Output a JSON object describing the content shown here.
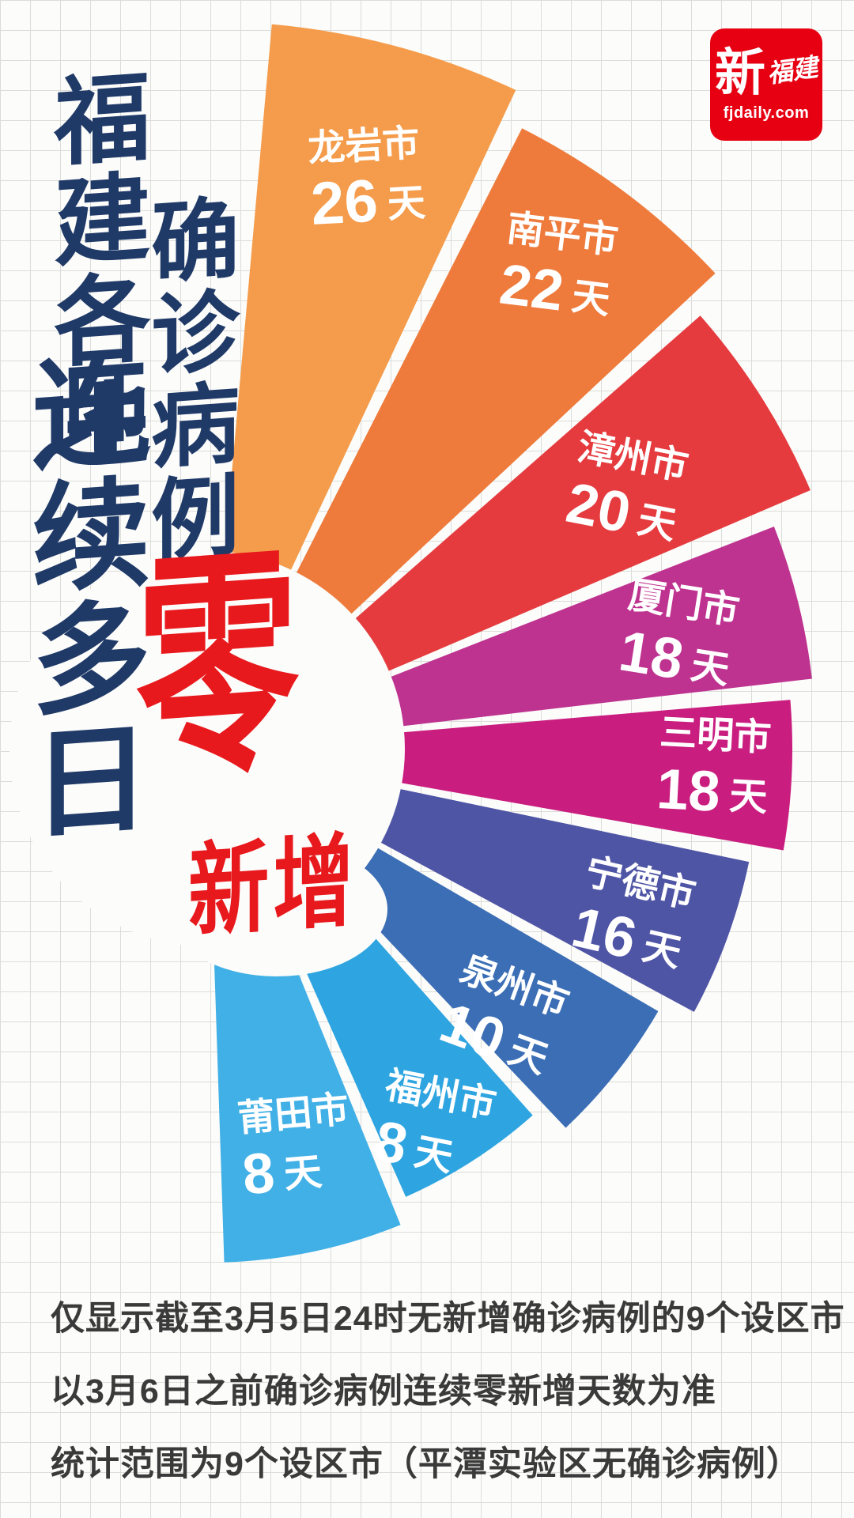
{
  "title": {
    "col1": "福建各地",
    "col2": "确诊病例",
    "col3": "连续多日",
    "zero": "零",
    "xinzeng": "新增"
  },
  "logo": {
    "name_bold": "新",
    "name_script": "福建",
    "domain": "fjdaily.com",
    "bg_color": "#e60012"
  },
  "footer": {
    "line1": "仅显示截至3月5日24时无新增确诊病例的9个设区市",
    "line2": "以3月6日之前确诊病例连续零新增天数为准",
    "line3": "统计范围为9个设区市（平潭实验区无确诊病例）"
  },
  "colors": {
    "title_navy": "#203a68",
    "accent_red": "#e8191d",
    "footer_text": "#3a3a3a",
    "background": "#fcfcfa",
    "grid_line": "#dcdcd9"
  },
  "chart_data": {
    "type": "bar",
    "variant": "polar_fan",
    "title": "福建各地确诊病例连续多日零新增",
    "unit": "天",
    "legend": "none",
    "value_range": [
      0,
      26
    ],
    "categories": [
      "龙岩市",
      "南平市",
      "漳州市",
      "厦门市",
      "三明市",
      "宁德市",
      "泉州市",
      "福州市",
      "莆田市"
    ],
    "values": [
      26,
      22,
      20,
      18,
      18,
      16,
      10,
      8,
      8
    ],
    "series": [
      {
        "city": "龙岩市",
        "days": 26,
        "color": "#f49c4b"
      },
      {
        "city": "南平市",
        "days": 22,
        "color": "#ee7b3c"
      },
      {
        "city": "漳州市",
        "days": 20,
        "color": "#e53b3e"
      },
      {
        "city": "厦门市",
        "days": 18,
        "color": "#be3390"
      },
      {
        "city": "三明市",
        "days": 18,
        "color": "#c91d7f"
      },
      {
        "city": "宁德市",
        "days": 16,
        "color": "#4f55a5"
      },
      {
        "city": "泉州市",
        "days": 10,
        "color": "#3b6eb5"
      },
      {
        "city": "福州市",
        "days": 8,
        "color": "#2ea5e0"
      },
      {
        "city": "莆田市",
        "days": 8,
        "color": "#41b0e6"
      }
    ]
  }
}
